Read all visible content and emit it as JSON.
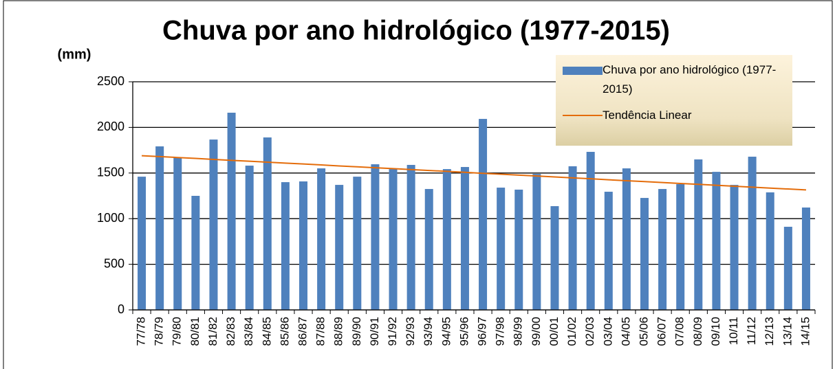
{
  "chart_data": {
    "type": "bar",
    "title": "Chuva por ano hidrológico (1977-2015)",
    "y_label": "(mm)",
    "categories": [
      "77/78",
      "78/79",
      "79/80",
      "80/81",
      "81/82",
      "82/83",
      "83/84",
      "84/85",
      "85/86",
      "86/87",
      "87/88",
      "88/89",
      "89/90",
      "90/91",
      "91/92",
      "92/93",
      "93/94",
      "94/95",
      "95/96",
      "96/97",
      "97/98",
      "98/99",
      "99/00",
      "00/01",
      "01/02",
      "02/03",
      "03/04",
      "04/05",
      "05/06",
      "06/07",
      "07/08",
      "08/09",
      "09/10",
      "10/11",
      "11/12",
      "12/13",
      "13/14",
      "14/15"
    ],
    "series": [
      {
        "name": "Chuva por ano hidrológico (1977-2015)",
        "type": "bar",
        "color": "#4f81bd",
        "values": [
          1460,
          1792,
          1672,
          1250,
          1867,
          2161,
          1581,
          1890,
          1400,
          1408,
          1551,
          1370,
          1460,
          1596,
          1543,
          1589,
          1325,
          1543,
          1566,
          2093,
          1340,
          1318,
          1490,
          1137,
          1574,
          1732,
          1295,
          1551,
          1227,
          1325,
          1378,
          1649,
          1513,
          1370,
          1679,
          1288,
          911,
          1122
        ]
      },
      {
        "name": "Tendência Linear",
        "type": "line",
        "color": "#e46c0a",
        "values": [
          1690,
          1680,
          1670,
          1660,
          1649,
          1639,
          1629,
          1619,
          1609,
          1599,
          1589,
          1578,
          1568,
          1558,
          1548,
          1538,
          1528,
          1518,
          1508,
          1497,
          1487,
          1477,
          1467,
          1457,
          1447,
          1437,
          1426,
          1416,
          1406,
          1396,
          1386,
          1376,
          1366,
          1355,
          1345,
          1335,
          1325,
          1315
        ]
      }
    ],
    "ylim": [
      0,
      2500
    ],
    "yticks": [
      0,
      500,
      1000,
      1500,
      2000,
      2500
    ],
    "grid": true
  }
}
